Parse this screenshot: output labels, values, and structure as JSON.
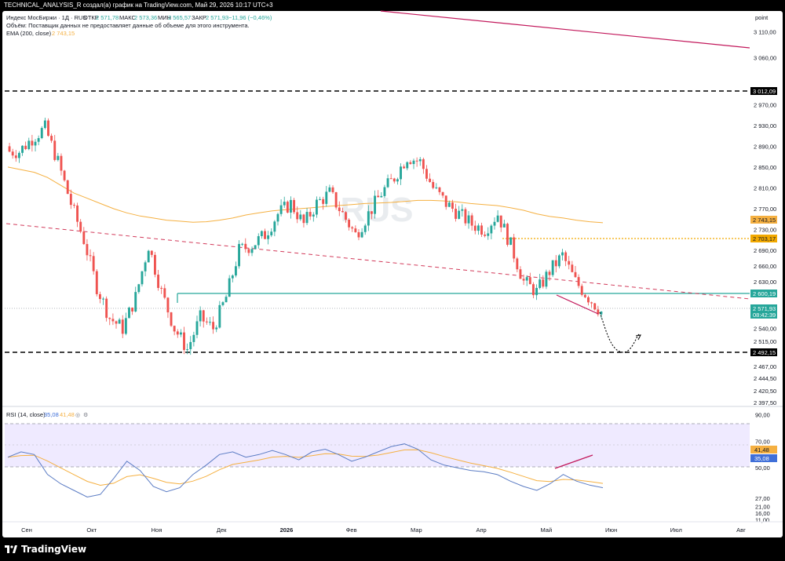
{
  "header": {
    "credit": "TECHNICAL_ANALYSIS_R создал(а) график на TradingView.com, Май 29, 2026 10:17 UTC+3"
  },
  "legend": {
    "symbol": "Индекс МосБиржи · 1Д · RUS",
    "open_label": "ОТКР",
    "open": "2 571,78",
    "high_label": "МАКС",
    "high": "2 573,36",
    "low_label": "МИН",
    "low": "2 565,57",
    "close_label": "ЗАКР",
    "close": "2 571,93",
    "change": "−11,96 (−0,46%)",
    "volume_note": "Объём: Поставщик данных не предоставляет данные об объеме для этого инструмента.",
    "ema_label": "EMA (200, close)",
    "ema_value": "2 743,15"
  },
  "watermark": "RUS",
  "price_axis": {
    "unit": "point",
    "ticks": [
      "3 110,00",
      "3 060,00",
      "2 970,00",
      "2 930,00",
      "2 890,00",
      "2 850,00",
      "2 810,00",
      "2 770,00",
      "2 730,00",
      "2 690,00",
      "2 660,00",
      "2 630,00",
      "2 540,00",
      "2 515,00",
      "2 467,00",
      "2 444,50",
      "2 420,50",
      "2 397,50"
    ],
    "badges": {
      "resistance": "3 012,09",
      "ema": "2 743,15",
      "orange_level": "2 703,17",
      "support": "2 600,19",
      "last_price": "2 571,93",
      "countdown": "08:42:39",
      "lower_support": "2 492,15"
    }
  },
  "rsi": {
    "label": "RSI (14, close)",
    "value": "35,08",
    "ma_value": "41,48",
    "axis_ticks": [
      "90,00",
      "70,00",
      "50,00",
      "27,00",
      "21,00",
      "16,00",
      "11,00"
    ]
  },
  "time_axis": [
    "Сен",
    "Окт",
    "Ноя",
    "Дек",
    "2026",
    "Фев",
    "Мар",
    "Апр",
    "Май",
    "Июн",
    "Июл",
    "Авг"
  ],
  "brand": "TradingView",
  "colors": {
    "up": "#26a69a",
    "down": "#ef5350",
    "ema": "#f5b041",
    "trendline": "#c2185b",
    "support": "#26a69a",
    "rsi_line": "#5b7cc4",
    "rsi_band": "#efeaff",
    "last_price_badge": "#26a69a",
    "rsi_value_badge": "#3f6fd8",
    "orange_level": "#f2a900"
  },
  "chart_data": {
    "type": "candlestick",
    "x_range": [
      "2025-08-20",
      "2026-08-10"
    ],
    "y_range": [
      2390,
      3150
    ],
    "levels": {
      "resistance": 3012.09,
      "orange_level": 2703.17,
      "support": 2600.19,
      "lower_support": 2492.15
    },
    "last_price": 2571.93,
    "ema200_last": 2743.15,
    "closes_weekly_approx": [
      2880,
      2905,
      2925,
      2860,
      2780,
      2710,
      2620,
      2560,
      2540,
      2600,
      2700,
      2610,
      2540,
      2500,
      2560,
      2540,
      2600,
      2690,
      2700,
      2720,
      2760,
      2780,
      2740,
      2780,
      2800,
      2760,
      2720,
      2760,
      2800,
      2830,
      2870,
      2860,
      2810,
      2780,
      2760,
      2740,
      2730,
      2760,
      2700,
      2630,
      2610,
      2650,
      2680,
      2630,
      2600,
      2572
    ],
    "ema200_weekly_approx": [
      2850,
      2845,
      2840,
      2830,
      2815,
      2800,
      2790,
      2780,
      2770,
      2762,
      2756,
      2752,
      2748,
      2746,
      2744,
      2745,
      2748,
      2752,
      2758,
      2762,
      2766,
      2768,
      2770,
      2772,
      2774,
      2776,
      2778,
      2780,
      2781,
      2782,
      2784,
      2786,
      2786,
      2785,
      2783,
      2780,
      2778,
      2776,
      2772,
      2767,
      2760,
      2755,
      2752,
      2748,
      2745,
      2743
    ],
    "rsi_weekly_approx": [
      58,
      62,
      60,
      45,
      38,
      33,
      28,
      30,
      42,
      55,
      48,
      36,
      32,
      35,
      45,
      52,
      60,
      62,
      58,
      60,
      63,
      60,
      56,
      62,
      64,
      60,
      55,
      58,
      62,
      66,
      68,
      64,
      56,
      52,
      50,
      48,
      47,
      45,
      40,
      36,
      33,
      38,
      45,
      40,
      37,
      35
    ],
    "rsi_range": [
      10,
      95
    ],
    "rsi_bands": [
      30,
      70
    ]
  }
}
